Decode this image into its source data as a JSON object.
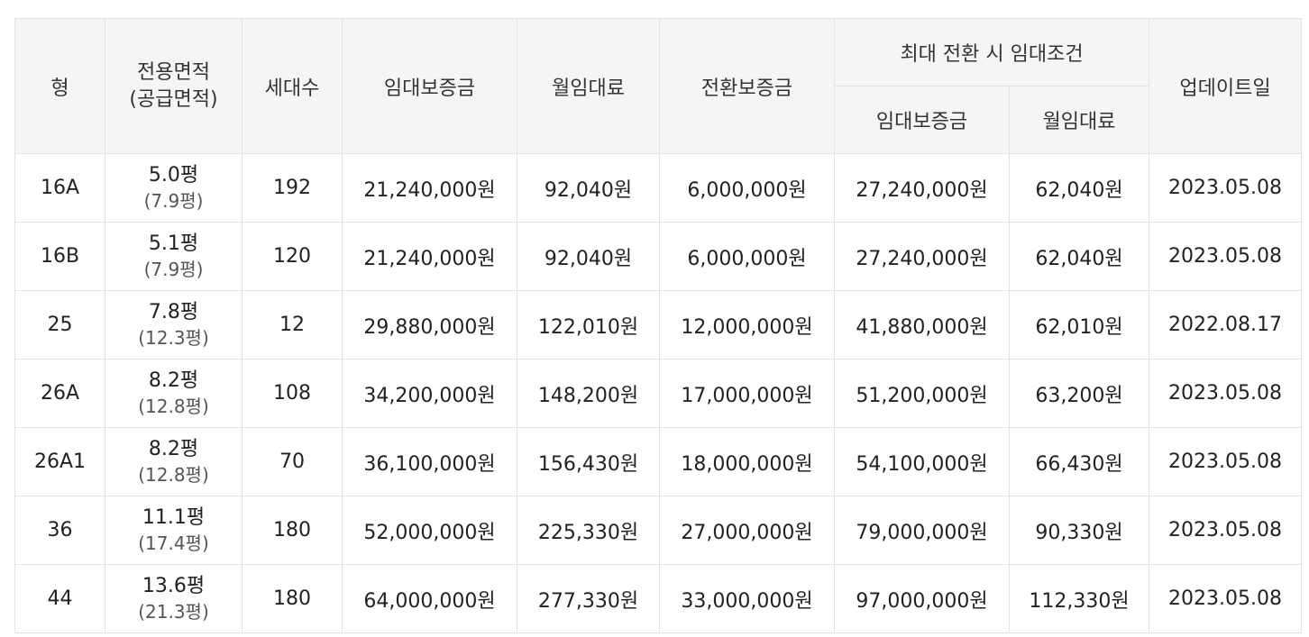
{
  "table": {
    "headers": {
      "type": "형",
      "area_line1": "전용면적",
      "area_line2": "(공급면적)",
      "households": "세대수",
      "deposit": "임대보증금",
      "monthly_rent": "월임대료",
      "conversion_deposit": "전환보증금",
      "max_conversion_group": "최대 전환 시 임대조건",
      "max_deposit": "임대보증금",
      "max_rent": "월임대료",
      "updated": "업데이트일"
    },
    "rows": [
      {
        "type": "16A",
        "area": "5.0평",
        "supply_area": "(7.9평)",
        "households": "192",
        "deposit": "21,240,000원",
        "rent": "92,040원",
        "conversion": "6,000,000원",
        "max_deposit": "27,240,000원",
        "max_rent": "62,040원",
        "updated": "2023.05.08"
      },
      {
        "type": "16B",
        "area": "5.1평",
        "supply_area": "(7.9평)",
        "households": "120",
        "deposit": "21,240,000원",
        "rent": "92,040원",
        "conversion": "6,000,000원",
        "max_deposit": "27,240,000원",
        "max_rent": "62,040원",
        "updated": "2023.05.08"
      },
      {
        "type": "25",
        "area": "7.8평",
        "supply_area": "(12.3평)",
        "households": "12",
        "deposit": "29,880,000원",
        "rent": "122,010원",
        "conversion": "12,000,000원",
        "max_deposit": "41,880,000원",
        "max_rent": "62,010원",
        "updated": "2022.08.17"
      },
      {
        "type": "26A",
        "area": "8.2평",
        "supply_area": "(12.8평)",
        "households": "108",
        "deposit": "34,200,000원",
        "rent": "148,200원",
        "conversion": "17,000,000원",
        "max_deposit": "51,200,000원",
        "max_rent": "63,200원",
        "updated": "2023.05.08"
      },
      {
        "type": "26A1",
        "area": "8.2평",
        "supply_area": "(12.8평)",
        "households": "70",
        "deposit": "36,100,000원",
        "rent": "156,430원",
        "conversion": "18,000,000원",
        "max_deposit": "54,100,000원",
        "max_rent": "66,430원",
        "updated": "2023.05.08"
      },
      {
        "type": "36",
        "area": "11.1평",
        "supply_area": "(17.4평)",
        "households": "180",
        "deposit": "52,000,000원",
        "rent": "225,330원",
        "conversion": "27,000,000원",
        "max_deposit": "79,000,000원",
        "max_rent": "90,330원",
        "updated": "2023.05.08"
      },
      {
        "type": "44",
        "area": "13.6평",
        "supply_area": "(21.3평)",
        "households": "180",
        "deposit": "64,000,000원",
        "rent": "277,330원",
        "conversion": "33,000,000원",
        "max_deposit": "97,000,000원",
        "max_rent": "112,330원",
        "updated": "2023.05.08"
      }
    ]
  }
}
